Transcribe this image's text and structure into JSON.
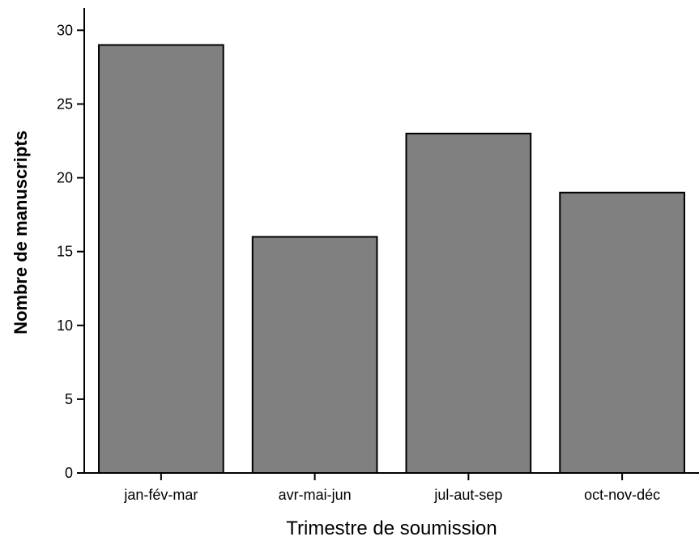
{
  "colors": {
    "bar_fill": "#808080",
    "bar_stroke": "#000000",
    "axis": "#000000",
    "background": "#ffffff"
  },
  "chart_data": {
    "type": "bar",
    "title": "",
    "xlabel": "Trimestre de soumission",
    "ylabel": "Nombre de manuscripts",
    "categories": [
      "jan-fév-mar",
      "avr-mai-jun",
      "jul-aut-sep",
      "oct-nov-déc"
    ],
    "values": [
      29,
      16,
      23,
      19
    ],
    "ylim": [
      0,
      31.5
    ],
    "yticks": [
      0,
      5,
      10,
      15,
      20,
      25,
      30
    ],
    "grid": false,
    "legend": "none"
  }
}
